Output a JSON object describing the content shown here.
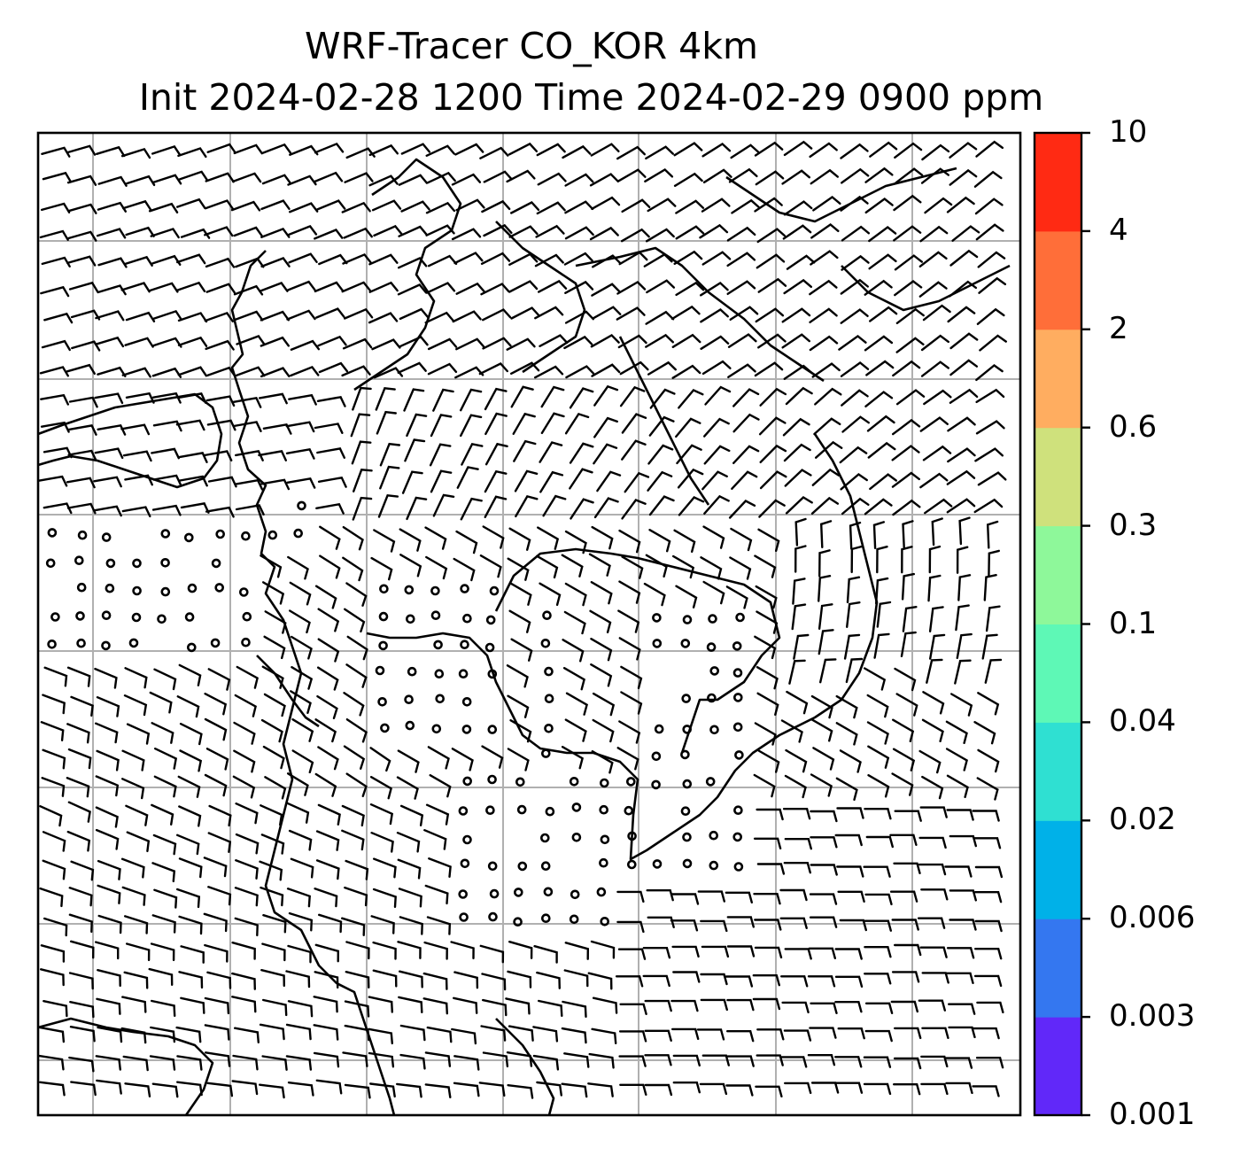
{
  "title": {
    "line1": "WRF-Tracer CO_KOR 4km",
    "line2": "Init 2024-02-28 1200 Time 2024-02-29 0900 ppm"
  },
  "colorbar": {
    "levels": [
      "0.001",
      "0.003",
      "0.006",
      "0.02",
      "0.04",
      "0.1",
      "0.3",
      "0.6",
      "2",
      "4",
      "10"
    ],
    "colors": [
      "#6128f9",
      "#3477f0",
      "#00b1e8",
      "#2fe0d2",
      "#5ef8b6",
      "#8ef89a",
      "#cfe17c",
      "#ffad60",
      "#ff6e39",
      "#ff2a13"
    ]
  },
  "map": {
    "frame_color": "#000000",
    "grid_color": "#b0b0b0",
    "coast_color": "#000000",
    "barb_color": "#000000",
    "symbols": [
      "wind-barb",
      "calm-circle",
      "coastline",
      "lat-lon-grid"
    ]
  }
}
